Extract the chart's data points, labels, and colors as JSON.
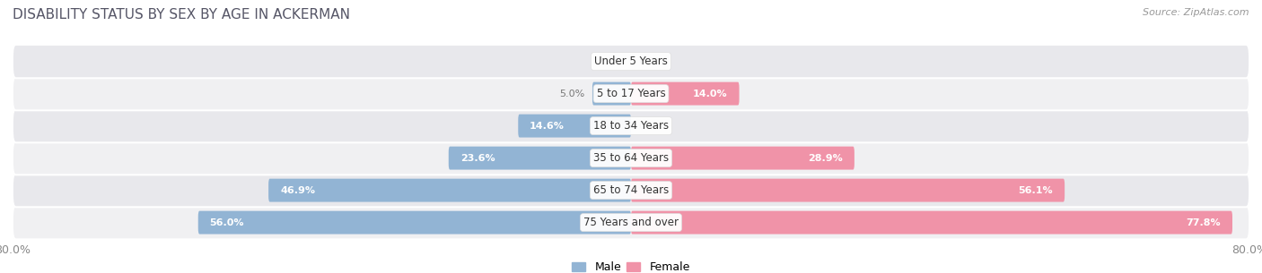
{
  "title": "DISABILITY STATUS BY SEX BY AGE IN ACKERMAN",
  "source": "Source: ZipAtlas.com",
  "categories": [
    "Under 5 Years",
    "5 to 17 Years",
    "18 to 34 Years",
    "35 to 64 Years",
    "65 to 74 Years",
    "75 Years and over"
  ],
  "male_values": [
    0.0,
    5.0,
    14.6,
    23.6,
    46.9,
    56.0
  ],
  "female_values": [
    0.0,
    14.0,
    0.0,
    28.9,
    56.1,
    77.8
  ],
  "max_value": 80.0,
  "male_color": "#92b4d4",
  "female_color": "#f093a8",
  "row_bg_odd": "#f0f0f2",
  "row_bg_even": "#e8e8ec",
  "bar_height": 0.72,
  "legend_male": "Male",
  "legend_female": "Female",
  "title_color": "#555566",
  "title_fontsize": 11,
  "source_fontsize": 8,
  "label_fontsize": 8,
  "cat_fontsize": 8.5,
  "outside_label_color": "#777777",
  "inside_label_color": "#ffffff"
}
